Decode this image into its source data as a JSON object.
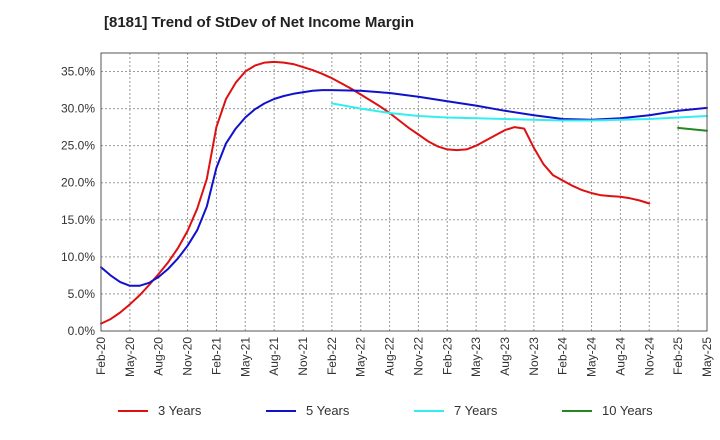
{
  "chart_data": {
    "type": "line",
    "title": "[8181]  Trend of StDev of Net Income Margin",
    "xlabel": "",
    "ylabel": "",
    "ylim": [
      0,
      0.375
    ],
    "y_ticks": [
      0,
      0.05,
      0.1,
      0.15,
      0.2,
      0.25,
      0.3,
      0.35
    ],
    "y_tick_labels": [
      "0.0%",
      "5.0%",
      "10.0%",
      "15.0%",
      "20.0%",
      "25.0%",
      "30.0%",
      "35.0%"
    ],
    "x_ticks": [
      "2020-02",
      "2020-05",
      "2020-08",
      "2020-11",
      "2021-02",
      "2021-05",
      "2021-08",
      "2021-11",
      "2022-02",
      "2022-05",
      "2022-08",
      "2022-11",
      "2023-02",
      "2023-05",
      "2023-08",
      "2023-11",
      "2024-02",
      "2024-05",
      "2024-08",
      "2024-11",
      "2025-02",
      "2025-05"
    ],
    "x_tick_labels": [
      "Feb-20",
      "May-20",
      "Aug-20",
      "Nov-20",
      "Feb-21",
      "May-21",
      "Aug-21",
      "Nov-21",
      "Feb-22",
      "May-22",
      "Aug-22",
      "Nov-22",
      "Feb-23",
      "May-23",
      "Aug-23",
      "Nov-23",
      "Feb-24",
      "May-24",
      "Aug-24",
      "Nov-24",
      "Feb-25",
      "May-25"
    ],
    "grid": true,
    "legend_position": "bottom",
    "series": [
      {
        "name": "3 Years",
        "color": "#dd1111",
        "points": [
          [
            "2020-02",
            0.01
          ],
          [
            "2020-03",
            0.016
          ],
          [
            "2020-04",
            0.025
          ],
          [
            "2020-05",
            0.036
          ],
          [
            "2020-06",
            0.048
          ],
          [
            "2020-07",
            0.062
          ],
          [
            "2020-08",
            0.077
          ],
          [
            "2020-09",
            0.093
          ],
          [
            "2020-10",
            0.112
          ],
          [
            "2020-11",
            0.135
          ],
          [
            "2020-12",
            0.165
          ],
          [
            "2021-01",
            0.205
          ],
          [
            "2021-02",
            0.275
          ],
          [
            "2021-03",
            0.313
          ],
          [
            "2021-04",
            0.335
          ],
          [
            "2021-05",
            0.35
          ],
          [
            "2021-06",
            0.358
          ],
          [
            "2021-07",
            0.362
          ],
          [
            "2021-08",
            0.363
          ],
          [
            "2021-09",
            0.362
          ],
          [
            "2021-10",
            0.36
          ],
          [
            "2021-11",
            0.356
          ],
          [
            "2021-12",
            0.352
          ],
          [
            "2022-01",
            0.347
          ],
          [
            "2022-02",
            0.341
          ],
          [
            "2022-03",
            0.334
          ],
          [
            "2022-04",
            0.327
          ],
          [
            "2022-05",
            0.319
          ],
          [
            "2022-06",
            0.311
          ],
          [
            "2022-07",
            0.303
          ],
          [
            "2022-08",
            0.294
          ],
          [
            "2022-09",
            0.284
          ],
          [
            "2022-10",
            0.274
          ],
          [
            "2022-11",
            0.265
          ],
          [
            "2022-12",
            0.256
          ],
          [
            "2023-01",
            0.249
          ],
          [
            "2023-02",
            0.245
          ],
          [
            "2023-03",
            0.244
          ],
          [
            "2023-04",
            0.245
          ],
          [
            "2023-05",
            0.25
          ],
          [
            "2023-06",
            0.257
          ],
          [
            "2023-07",
            0.264
          ],
          [
            "2023-08",
            0.271
          ],
          [
            "2023-09",
            0.275
          ],
          [
            "2023-10",
            0.273
          ],
          [
            "2023-11",
            0.247
          ],
          [
            "2023-12",
            0.225
          ],
          [
            "2024-01",
            0.21
          ],
          [
            "2024-02",
            0.203
          ],
          [
            "2024-03",
            0.196
          ],
          [
            "2024-04",
            0.19
          ],
          [
            "2024-05",
            0.186
          ],
          [
            "2024-06",
            0.183
          ],
          [
            "2024-07",
            0.182
          ],
          [
            "2024-08",
            0.181
          ],
          [
            "2024-09",
            0.179
          ],
          [
            "2024-10",
            0.176
          ],
          [
            "2024-11",
            0.172
          ]
        ]
      },
      {
        "name": "5 Years",
        "color": "#1111cc",
        "points": [
          [
            "2020-02",
            0.086
          ],
          [
            "2020-03",
            0.075
          ],
          [
            "2020-04",
            0.066
          ],
          [
            "2020-05",
            0.061
          ],
          [
            "2020-06",
            0.061
          ],
          [
            "2020-07",
            0.065
          ],
          [
            "2020-08",
            0.073
          ],
          [
            "2020-09",
            0.084
          ],
          [
            "2020-10",
            0.098
          ],
          [
            "2020-11",
            0.115
          ],
          [
            "2020-12",
            0.136
          ],
          [
            "2021-01",
            0.168
          ],
          [
            "2021-02",
            0.22
          ],
          [
            "2021-03",
            0.253
          ],
          [
            "2021-04",
            0.273
          ],
          [
            "2021-05",
            0.288
          ],
          [
            "2021-06",
            0.299
          ],
          [
            "2021-07",
            0.307
          ],
          [
            "2021-08",
            0.313
          ],
          [
            "2021-09",
            0.317
          ],
          [
            "2021-10",
            0.32
          ],
          [
            "2021-11",
            0.322
          ],
          [
            "2021-12",
            0.324
          ],
          [
            "2022-01",
            0.325
          ],
          [
            "2022-02",
            0.325
          ],
          [
            "2022-05",
            0.324
          ],
          [
            "2022-08",
            0.321
          ],
          [
            "2022-11",
            0.316
          ],
          [
            "2023-02",
            0.31
          ],
          [
            "2023-05",
            0.304
          ],
          [
            "2023-08",
            0.297
          ],
          [
            "2023-11",
            0.291
          ],
          [
            "2024-02",
            0.286
          ],
          [
            "2024-05",
            0.285
          ],
          [
            "2024-08",
            0.287
          ],
          [
            "2024-11",
            0.291
          ],
          [
            "2025-02",
            0.297
          ],
          [
            "2025-05",
            0.301
          ]
        ]
      },
      {
        "name": "7 Years",
        "color": "#33eeee",
        "points": [
          [
            "2022-02",
            0.307
          ],
          [
            "2022-05",
            0.3
          ],
          [
            "2022-08",
            0.294
          ],
          [
            "2022-11",
            0.29
          ],
          [
            "2023-02",
            0.288
          ],
          [
            "2023-05",
            0.287
          ],
          [
            "2023-08",
            0.286
          ],
          [
            "2023-11",
            0.285
          ],
          [
            "2024-02",
            0.284
          ],
          [
            "2024-05",
            0.284
          ],
          [
            "2024-08",
            0.285
          ],
          [
            "2024-11",
            0.286
          ],
          [
            "2025-02",
            0.288
          ],
          [
            "2025-05",
            0.29
          ]
        ]
      },
      {
        "name": "10 Years",
        "color": "#228822",
        "points": [
          [
            "2025-02",
            0.274
          ],
          [
            "2025-05",
            0.27
          ]
        ]
      }
    ]
  }
}
